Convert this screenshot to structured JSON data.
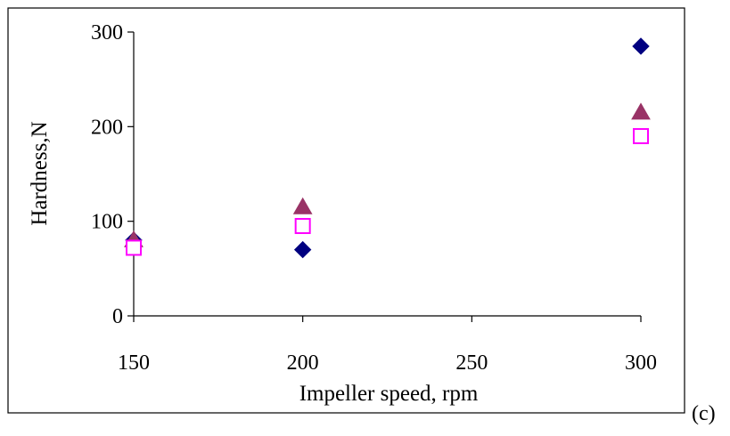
{
  "chart_data": {
    "type": "scatter",
    "title": "",
    "xlabel": "Impeller speed, rpm",
    "ylabel": "Hardness,N",
    "xlim": [
      150,
      300
    ],
    "ylim": [
      0,
      300
    ],
    "xticks": [
      150,
      200,
      250,
      300
    ],
    "yticks": [
      0,
      100,
      200,
      300
    ],
    "grid": false,
    "legend": "none",
    "series": [
      {
        "marker": "diamond",
        "color": "#000080",
        "x": [
          150,
          200,
          300
        ],
        "y": [
          80,
          70,
          285
        ]
      },
      {
        "marker": "triangle",
        "color": "#993366",
        "x": [
          150,
          200,
          300
        ],
        "y": [
          80,
          115,
          215
        ]
      },
      {
        "marker": "square-open",
        "color": "#FF00FF",
        "x": [
          150,
          200,
          300
        ],
        "y": [
          72,
          95,
          190
        ]
      }
    ]
  },
  "panel_label": "(c)"
}
